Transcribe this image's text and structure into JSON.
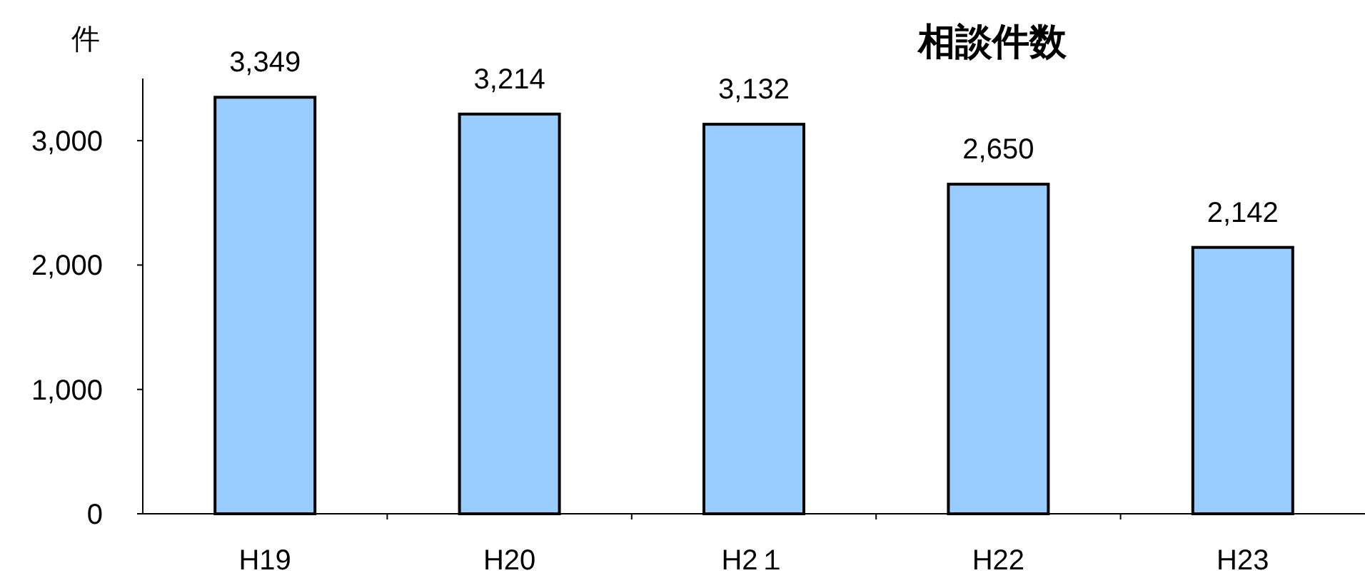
{
  "chart_data": {
    "type": "bar",
    "title": "相談件数",
    "ylabel": "件",
    "categories": [
      "H19",
      "H20",
      "H2１",
      "H22",
      "H23"
    ],
    "values": [
      3349,
      3214,
      3132,
      2650,
      2142
    ],
    "value_labels": [
      "3,349",
      "3,214",
      "3,132",
      "2,650",
      "2,142"
    ],
    "color": "#99ccff",
    "ylim": [
      0,
      3500
    ],
    "yticks": [
      {
        "value": 0,
        "label": "0"
      },
      {
        "value": 1000,
        "label": "1,000"
      },
      {
        "value": 2000,
        "label": "2,000"
      },
      {
        "value": 3000,
        "label": "3,000"
      }
    ],
    "grid": false
  }
}
